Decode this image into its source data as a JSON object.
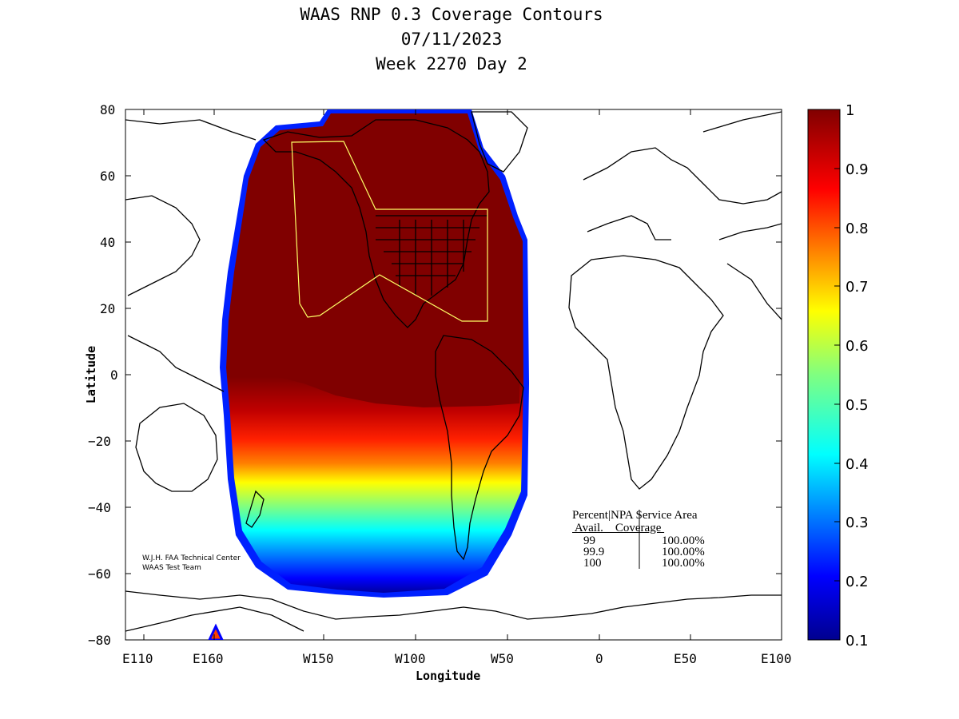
{
  "title": {
    "line1": "WAAS RNP 0.3 Coverage Contours",
    "line2": "07/11/2023",
    "line3": "Week 2270 Day 2"
  },
  "axes": {
    "xlabel": "Longitude",
    "ylabel": "Latitude",
    "x_ticks": [
      "E110",
      "E160",
      "W150",
      "W100",
      "W50",
      "0",
      "E50",
      "E100"
    ],
    "y_ticks": [
      "80",
      "60",
      "40",
      "20",
      "0",
      "−20",
      "−40",
      "−60",
      "−80"
    ]
  },
  "colorbar": {
    "ticks": [
      "1",
      "0.9",
      "0.8",
      "0.7",
      "0.6",
      "0.5",
      "0.4",
      "0.3",
      "0.2",
      "0.1"
    ],
    "range": [
      0.1,
      1
    ]
  },
  "legend": {
    "header1": "Percent|NPA Service Area",
    "header2": " Avail.    Coverage ",
    "rows": [
      {
        "avail": "99",
        "coverage": "100.00%"
      },
      {
        "avail": "99.9",
        "coverage": "100.00%"
      },
      {
        "avail": "100",
        "coverage": "100.00%"
      }
    ]
  },
  "credit": {
    "line1": "W.J.H. FAA Technical Center",
    "line2": "WAAS Test Team"
  },
  "colors": {
    "high": "#800000",
    "service_area_outline": "#ffff66"
  }
}
